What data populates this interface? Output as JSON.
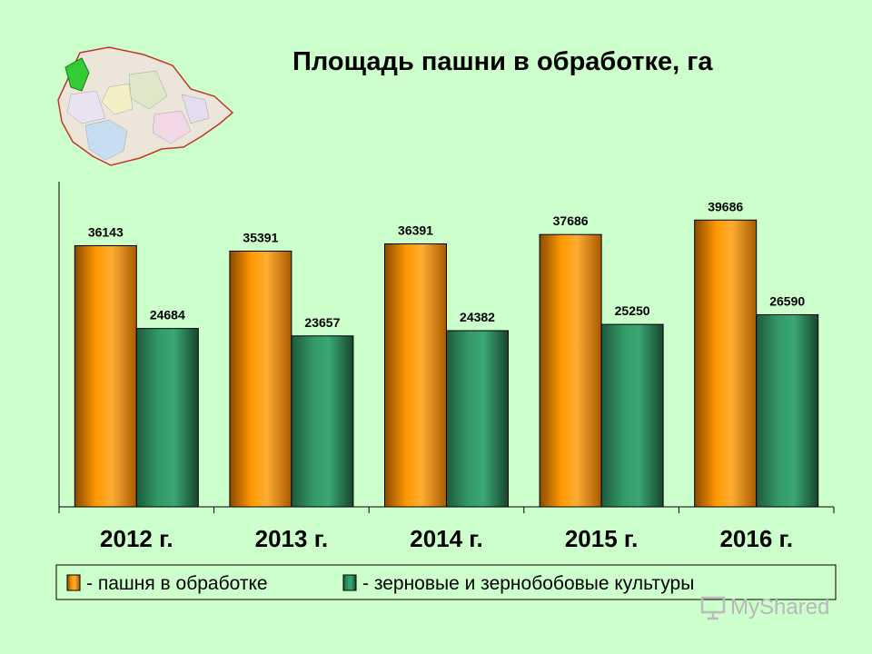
{
  "chart_data": {
    "type": "bar",
    "title": "Площадь пашни в обработке, га",
    "categories": [
      "2012 г.",
      "2013 г.",
      "2014 г.",
      "2015 г.",
      "2016 г."
    ],
    "series": [
      {
        "name": "- пашня в обработке",
        "values": [
          36143,
          35391,
          36391,
          37686,
          39686
        ],
        "color": "#ff9900"
      },
      {
        "name": "- зерновые и зернобобовые культуры",
        "values": [
          24684,
          23657,
          24382,
          25250,
          26590
        ],
        "color": "#339966"
      }
    ],
    "ylim": [
      0,
      45000
    ],
    "grid": false,
    "legend": "bottom",
    "xlabel": "",
    "ylabel": ""
  },
  "watermark": {
    "text": "MyShared",
    "icon": "presentation-board-icon"
  }
}
